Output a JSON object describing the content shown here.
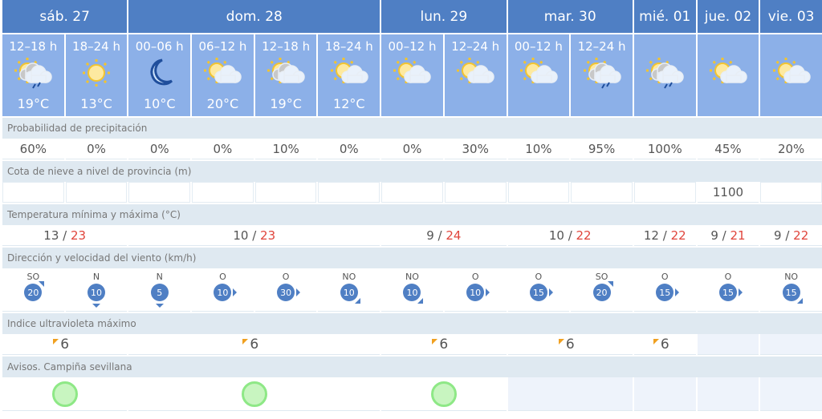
{
  "days": [
    {
      "label": "sáb. 27",
      "span": 2
    },
    {
      "label": "dom. 28",
      "span": 4
    },
    {
      "label": "lun. 29",
      "span": 2
    },
    {
      "label": "mar. 30",
      "span": 2
    },
    {
      "label": "mié. 01",
      "span": 1
    },
    {
      "label": "jue. 02",
      "span": 1
    },
    {
      "label": "vie. 03",
      "span": 1
    }
  ],
  "periods": [
    {
      "hours": "12–18 h",
      "icon": "sun-storm-cloud-rain",
      "temp": "19°C"
    },
    {
      "hours": "18–24 h",
      "icon": "sun",
      "temp": "13°C"
    },
    {
      "hours": "00–06 h",
      "icon": "moon",
      "temp": "10°C"
    },
    {
      "hours": "06–12 h",
      "icon": "sun-cloud",
      "temp": "20°C"
    },
    {
      "hours": "12–18 h",
      "icon": "sun-gray-cloud",
      "temp": "19°C"
    },
    {
      "hours": "18–24 h",
      "icon": "sun-cloud",
      "temp": "12°C"
    },
    {
      "hours": "00–12 h",
      "icon": "sun-cloud",
      "temp": ""
    },
    {
      "hours": "12–24 h",
      "icon": "sun-cloud",
      "temp": ""
    },
    {
      "hours": "00–12 h",
      "icon": "sun-cloud",
      "temp": ""
    },
    {
      "hours": "12–24 h",
      "icon": "sun-storm-cloud-rain",
      "temp": ""
    },
    {
      "hours": "",
      "icon": "sun-gray-cloud-rain",
      "temp": ""
    },
    {
      "hours": "",
      "icon": "sun-cloud",
      "temp": ""
    },
    {
      "hours": "",
      "icon": "sun-cloud",
      "temp": ""
    }
  ],
  "labels": {
    "precip": "Probabilidad de precipitación",
    "snow": "Cota de nieve a nivel de provincia (m)",
    "temp": "Temperatura mínima y máxima (°C)",
    "wind": "Dirección y velocidad del viento (km/h)",
    "uv": "Indice ultravioleta máximo",
    "alerts": "Avisos. Campiña sevillana"
  },
  "precip": [
    "60%",
    "0%",
    "0%",
    "0%",
    "10%",
    "0%",
    "0%",
    "30%",
    "10%",
    "95%",
    "100%",
    "45%",
    "20%"
  ],
  "snow": [
    "",
    "",
    "",
    "",
    "",
    "",
    "",
    "",
    "",
    "",
    "",
    "1100",
    ""
  ],
  "temps": [
    {
      "min": "13",
      "max": "23",
      "span": 2
    },
    {
      "min": "10",
      "max": "23",
      "span": 4
    },
    {
      "min": "9",
      "max": "24",
      "span": 2
    },
    {
      "min": "10",
      "max": "22",
      "span": 2
    },
    {
      "min": "12",
      "max": "22",
      "span": 1
    },
    {
      "min": "9",
      "max": "21",
      "span": 1
    },
    {
      "min": "9",
      "max": "22",
      "span": 1
    }
  ],
  "wind": [
    {
      "dir": "SO",
      "speed": "20"
    },
    {
      "dir": "N",
      "speed": "10"
    },
    {
      "dir": "N",
      "speed": "5"
    },
    {
      "dir": "O",
      "speed": "10"
    },
    {
      "dir": "O",
      "speed": "30"
    },
    {
      "dir": "NO",
      "speed": "10"
    },
    {
      "dir": "NO",
      "speed": "10"
    },
    {
      "dir": "O",
      "speed": "10"
    },
    {
      "dir": "O",
      "speed": "15"
    },
    {
      "dir": "SO",
      "speed": "20"
    },
    {
      "dir": "O",
      "speed": "15"
    },
    {
      "dir": "O",
      "speed": "15"
    },
    {
      "dir": "NO",
      "speed": "15"
    }
  ],
  "uv": [
    {
      "value": "6",
      "span": 2
    },
    {
      "value": "6",
      "span": 4
    },
    {
      "value": "6",
      "span": 2
    },
    {
      "value": "6",
      "span": 2
    },
    {
      "value": "6",
      "span": 1
    },
    {
      "value": "",
      "span": 1
    },
    {
      "value": "",
      "span": 1
    }
  ],
  "alerts": [
    {
      "level": "green",
      "span": 2
    },
    {
      "level": "green",
      "span": 4
    },
    {
      "level": "green",
      "span": 2
    },
    {
      "level": "",
      "span": 2
    },
    {
      "level": "",
      "span": 1
    },
    {
      "level": "",
      "span": 1
    },
    {
      "level": "",
      "span": 1
    }
  ],
  "colors": {
    "header": "#4f7fc4",
    "subheader": "#8cb0e8",
    "max_temp": "#e0453c",
    "alert_green": "#8ee886",
    "uv_flag": "#f0a020"
  }
}
